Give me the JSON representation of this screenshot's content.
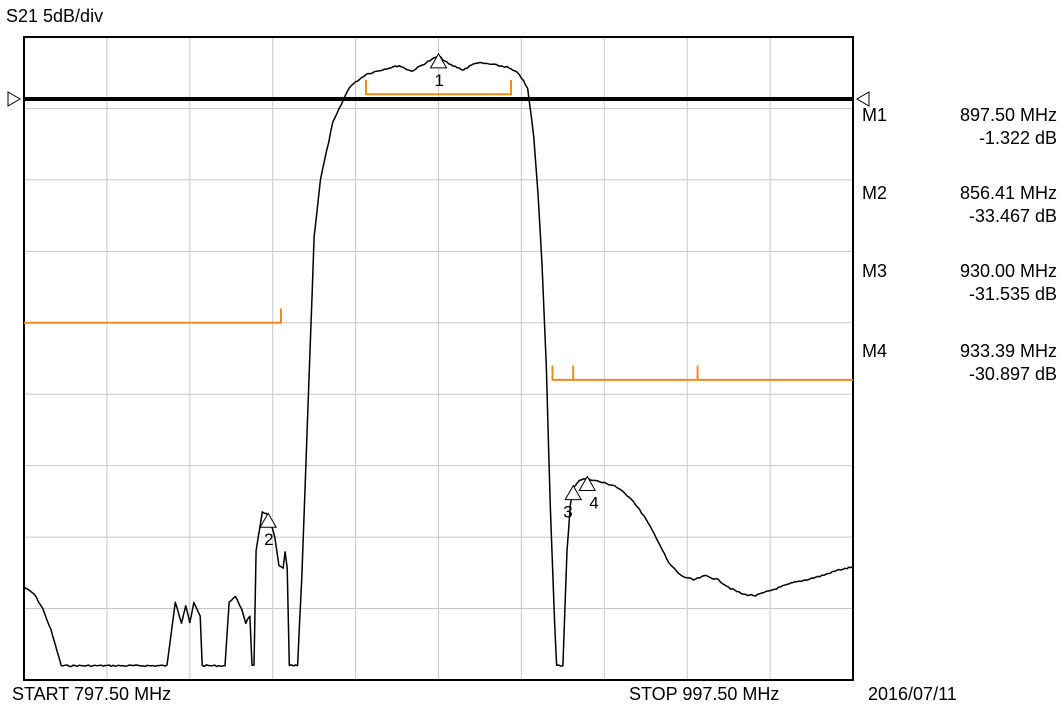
{
  "header": {
    "label": "S21  5dB/div"
  },
  "footer": {
    "start": "START  797.50 MHz",
    "stop": "STOP  997.50 MHz",
    "date": "2016/07/11"
  },
  "markers": [
    {
      "id": "M1",
      "freq": "897.50 MHz",
      "level": "-1.322 dB"
    },
    {
      "id": "M2",
      "freq": "856.41 MHz",
      "level": "-33.467 dB"
    },
    {
      "id": "M3",
      "freq": "930.00 MHz",
      "level": "-31.535 dB"
    },
    {
      "id": "M4",
      "freq": "933.39 MHz",
      "level": "-30.897 dB"
    }
  ],
  "colors": {
    "trace": "#000000",
    "limit": "#f08c1e",
    "grid": "#c8c8c8",
    "reference": "#000000"
  },
  "chart_data": {
    "type": "line",
    "x_unit": "MHz",
    "y_unit": "dB",
    "xlim": [
      797.5,
      997.5
    ],
    "ylim": [
      -45,
      0
    ],
    "x_divisions": 10,
    "y_divisions": 9,
    "reference_level": 0,
    "grid": true,
    "series": [
      {
        "points": [
          [
            797.5,
            -38.5
          ],
          [
            800.0,
            -39.0
          ],
          [
            802.0,
            -40.0
          ],
          [
            804.0,
            -41.5
          ],
          [
            806.5,
            -44.0
          ],
          [
            832.0,
            -44.0
          ],
          [
            834.0,
            -39.5
          ],
          [
            835.5,
            -41.0
          ],
          [
            836.5,
            -39.8
          ],
          [
            837.5,
            -41.0
          ],
          [
            838.5,
            -39.6
          ],
          [
            840.0,
            -40.5
          ],
          [
            840.5,
            -44.0
          ],
          [
            846.0,
            -44.0
          ],
          [
            847.0,
            -39.5
          ],
          [
            848.5,
            -39.2
          ],
          [
            850.0,
            -40.0
          ],
          [
            851.0,
            -41.0
          ],
          [
            852.0,
            -40.5
          ],
          [
            852.5,
            -44.0
          ],
          [
            853.0,
            -44.0
          ],
          [
            853.5,
            -36.0
          ],
          [
            855.0,
            -33.2
          ],
          [
            856.41,
            -33.467
          ],
          [
            857.0,
            -34.0
          ],
          [
            858.0,
            -35.0
          ],
          [
            859.0,
            -37.0
          ],
          [
            860.0,
            -37.2
          ],
          [
            860.5,
            -36.0
          ],
          [
            861.0,
            -37.2
          ],
          [
            861.5,
            -44.0
          ],
          [
            863.5,
            -44.0
          ],
          [
            864.5,
            -38.0
          ],
          [
            865.5,
            -30.0
          ],
          [
            866.5,
            -22.0
          ],
          [
            867.5,
            -14.0
          ],
          [
            869.0,
            -10.0
          ],
          [
            872.0,
            -6.0
          ],
          [
            876.0,
            -3.5
          ],
          [
            880.0,
            -2.6
          ],
          [
            885.0,
            -2.2
          ],
          [
            888.0,
            -2.0
          ],
          [
            891.0,
            -2.4
          ],
          [
            894.5,
            -1.8
          ],
          [
            897.5,
            -1.322
          ],
          [
            900.0,
            -1.9
          ],
          [
            903.5,
            -2.3
          ],
          [
            906.5,
            -1.8
          ],
          [
            910.0,
            -1.9
          ],
          [
            914.0,
            -2.1
          ],
          [
            917.0,
            -2.6
          ],
          [
            919.0,
            -3.6
          ],
          [
            920.5,
            -7.0
          ],
          [
            921.5,
            -11.0
          ],
          [
            922.5,
            -16.0
          ],
          [
            923.5,
            -23.0
          ],
          [
            924.5,
            -33.0
          ],
          [
            925.5,
            -41.0
          ],
          [
            926.0,
            -44.0
          ],
          [
            927.5,
            -44.0
          ],
          [
            928.5,
            -36.0
          ],
          [
            929.3,
            -32.8
          ],
          [
            930.0,
            -31.535
          ],
          [
            931.5,
            -31.0
          ],
          [
            933.39,
            -30.897
          ],
          [
            936.0,
            -31.1
          ],
          [
            940.0,
            -31.4
          ],
          [
            944.0,
            -32.3
          ],
          [
            947.0,
            -33.5
          ],
          [
            950.0,
            -35.0
          ],
          [
            953.0,
            -36.8
          ],
          [
            956.0,
            -37.7
          ],
          [
            959.0,
            -38.0
          ],
          [
            962.0,
            -37.7
          ],
          [
            965.0,
            -38.0
          ],
          [
            968.0,
            -38.6
          ],
          [
            971.0,
            -39.0
          ],
          [
            974.0,
            -39.1
          ],
          [
            977.0,
            -38.8
          ],
          [
            980.0,
            -38.5
          ],
          [
            983.0,
            -38.2
          ],
          [
            986.0,
            -38.0
          ],
          [
            990.0,
            -37.7
          ],
          [
            994.0,
            -37.3
          ],
          [
            997.5,
            -37.1
          ]
        ]
      }
    ],
    "limit_lines": [
      {
        "points": [
          [
            797.5,
            -20.0
          ],
          [
            859.5,
            -20.0
          ],
          [
            859.5,
            -19.0
          ]
        ]
      },
      {
        "points": [
          [
            880.0,
            -4.0
          ],
          [
            880.0,
            -3.0
          ],
          [
            880.0,
            -4.0
          ],
          [
            915.0,
            -4.0
          ],
          [
            915.0,
            -3.0
          ]
        ]
      },
      {
        "points": [
          [
            925.0,
            -24.0
          ],
          [
            925.0,
            -23.0
          ],
          [
            925.0,
            -24.0
          ],
          [
            930.0,
            -24.0
          ],
          [
            930.0,
            -23.0
          ],
          [
            930.0,
            -24.0
          ],
          [
            960.0,
            -24.0
          ],
          [
            960.0,
            -23.0
          ],
          [
            960.0,
            -24.0
          ],
          [
            997.5,
            -24.0
          ]
        ]
      }
    ],
    "marker_positions": [
      {
        "label": "1",
        "x": 897.5,
        "y": -1.322
      },
      {
        "label": "2",
        "x": 856.41,
        "y": -33.467
      },
      {
        "label": "3",
        "x": 930.0,
        "y": -31.535
      },
      {
        "label": "4",
        "x": 933.39,
        "y": -30.897
      }
    ]
  }
}
